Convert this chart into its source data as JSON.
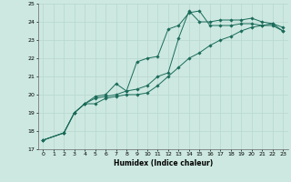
{
  "title": "",
  "xlabel": "Humidex (Indice chaleur)",
  "x": [
    0,
    1,
    2,
    3,
    4,
    5,
    6,
    7,
    8,
    9,
    10,
    11,
    12,
    13,
    14,
    15,
    16,
    17,
    18,
    19,
    20,
    21,
    22,
    23
  ],
  "line1": [
    17.5,
    null,
    17.9,
    19.0,
    19.5,
    19.9,
    20.0,
    20.6,
    20.2,
    20.3,
    20.5,
    21.0,
    21.2,
    23.1,
    24.6,
    24.0,
    24.0,
    24.1,
    24.1,
    24.1,
    24.2,
    24.0,
    23.9,
    23.7
  ],
  "line2": [
    17.5,
    null,
    17.9,
    19.0,
    19.5,
    19.8,
    19.9,
    20.0,
    20.2,
    21.8,
    22.0,
    22.1,
    23.6,
    23.8,
    24.5,
    24.6,
    23.8,
    23.8,
    23.8,
    23.9,
    23.9,
    23.8,
    23.8,
    23.5
  ],
  "line3": [
    17.5,
    null,
    17.9,
    19.0,
    19.5,
    19.5,
    19.8,
    19.9,
    20.0,
    20.0,
    20.1,
    20.5,
    21.0,
    21.5,
    22.0,
    22.3,
    22.7,
    23.0,
    23.2,
    23.5,
    23.7,
    23.8,
    23.9,
    23.5
  ],
  "bg_color": "#cce8e0",
  "line_color": "#1a6b5a",
  "grid_color": "#b8d8d0",
  "ylim": [
    17,
    25
  ],
  "xlim": [
    -0.5,
    23.5
  ],
  "yticks": [
    17,
    18,
    19,
    20,
    21,
    22,
    23,
    24,
    25
  ],
  "xticks": [
    0,
    1,
    2,
    3,
    4,
    5,
    6,
    7,
    8,
    9,
    10,
    11,
    12,
    13,
    14,
    15,
    16,
    17,
    18,
    19,
    20,
    21,
    22,
    23
  ]
}
